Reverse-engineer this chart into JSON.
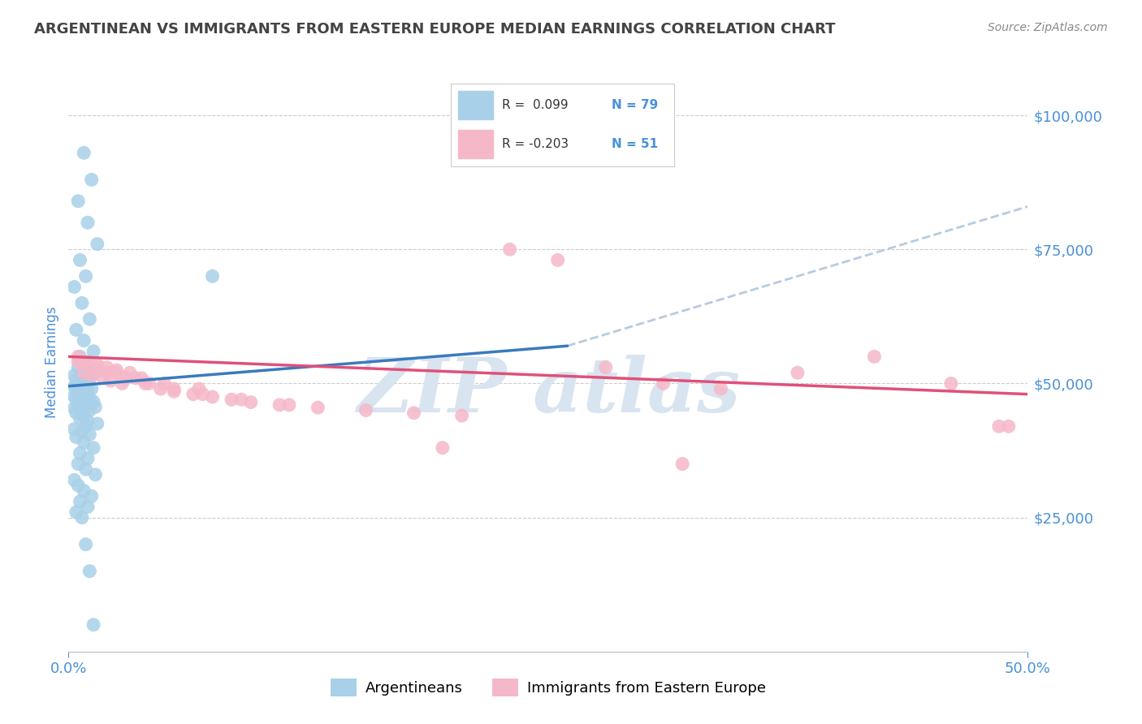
{
  "title": "ARGENTINEAN VS IMMIGRANTS FROM EASTERN EUROPE MEDIAN EARNINGS CORRELATION CHART",
  "source": "Source: ZipAtlas.com",
  "ylabel": "Median Earnings",
  "yticks": [
    25000,
    50000,
    75000,
    100000
  ],
  "ytick_labels": [
    "$25,000",
    "$50,000",
    "$75,000",
    "$100,000"
  ],
  "xmin": 0.0,
  "xmax": 0.5,
  "ymin": 0,
  "ymax": 108000,
  "blue_color": "#a8d0e8",
  "pink_color": "#f5b8c8",
  "trend_blue": "#3a7abf",
  "trend_pink": "#e0507a",
  "trend_gray": "#aec6e0",
  "title_color": "#444444",
  "axis_color": "#4a90d9",
  "watermark_color": "#d8e4f0",
  "blue_scatter_x": [
    0.008,
    0.012,
    0.005,
    0.01,
    0.015,
    0.006,
    0.009,
    0.003,
    0.007,
    0.011,
    0.004,
    0.008,
    0.013,
    0.006,
    0.01,
    0.005,
    0.009,
    0.014,
    0.003,
    0.007,
    0.011,
    0.004,
    0.008,
    0.006,
    0.01,
    0.005,
    0.009,
    0.003,
    0.007,
    0.012,
    0.004,
    0.008,
    0.006,
    0.01,
    0.005,
    0.009,
    0.003,
    0.007,
    0.011,
    0.004,
    0.008,
    0.013,
    0.006,
    0.01,
    0.005,
    0.009,
    0.014,
    0.003,
    0.007,
    0.011,
    0.004,
    0.008,
    0.006,
    0.01,
    0.015,
    0.009,
    0.003,
    0.007,
    0.011,
    0.004,
    0.008,
    0.013,
    0.006,
    0.01,
    0.005,
    0.009,
    0.014,
    0.003,
    0.075,
    0.005,
    0.008,
    0.012,
    0.006,
    0.01,
    0.004,
    0.007,
    0.009,
    0.011,
    0.013
  ],
  "blue_scatter_y": [
    93000,
    88000,
    84000,
    80000,
    76000,
    73000,
    70000,
    68000,
    65000,
    62000,
    60000,
    58000,
    56000,
    55000,
    54000,
    53000,
    52500,
    52000,
    51500,
    51000,
    50800,
    50600,
    50400,
    50200,
    50000,
    49800,
    49600,
    49400,
    49200,
    49000,
    48800,
    48600,
    48400,
    48200,
    48000,
    47800,
    47600,
    47400,
    47200,
    47000,
    46800,
    46600,
    46400,
    46200,
    46000,
    45800,
    45600,
    45400,
    45200,
    45000,
    44500,
    44000,
    43500,
    43000,
    42500,
    42000,
    41500,
    41000,
    40500,
    40000,
    39000,
    38000,
    37000,
    36000,
    35000,
    34000,
    33000,
    32000,
    70000,
    31000,
    30000,
    29000,
    28000,
    27000,
    26000,
    25000,
    20000,
    15000,
    5000
  ],
  "pink_scatter_x": [
    0.005,
    0.01,
    0.015,
    0.02,
    0.025,
    0.008,
    0.012,
    0.018,
    0.022,
    0.028,
    0.032,
    0.038,
    0.042,
    0.048,
    0.055,
    0.065,
    0.075,
    0.085,
    0.095,
    0.11,
    0.13,
    0.155,
    0.18,
    0.205,
    0.23,
    0.255,
    0.28,
    0.31,
    0.34,
    0.38,
    0.42,
    0.46,
    0.49,
    0.005,
    0.012,
    0.02,
    0.03,
    0.04,
    0.055,
    0.07,
    0.09,
    0.115,
    0.008,
    0.015,
    0.025,
    0.035,
    0.05,
    0.068,
    0.32,
    0.485,
    0.195
  ],
  "pink_scatter_y": [
    55000,
    54000,
    53500,
    53000,
    52500,
    52000,
    51500,
    51000,
    50500,
    50000,
    52000,
    51000,
    50000,
    49000,
    48500,
    48000,
    47500,
    47000,
    46500,
    46000,
    45500,
    45000,
    44500,
    44000,
    75000,
    73000,
    53000,
    50000,
    49000,
    52000,
    55000,
    50000,
    42000,
    54000,
    53000,
    52000,
    51000,
    50000,
    49000,
    48000,
    47000,
    46000,
    54000,
    53000,
    52000,
    51000,
    50000,
    49000,
    35000,
    42000,
    38000
  ],
  "blue_trend_x": [
    0.0,
    0.26
  ],
  "blue_trend_y": [
    49500,
    57000
  ],
  "gray_trend_x": [
    0.26,
    0.5
  ],
  "gray_trend_y": [
    57000,
    83000
  ],
  "pink_trend_x": [
    0.0,
    0.5
  ],
  "pink_trend_y": [
    55000,
    48000
  ]
}
